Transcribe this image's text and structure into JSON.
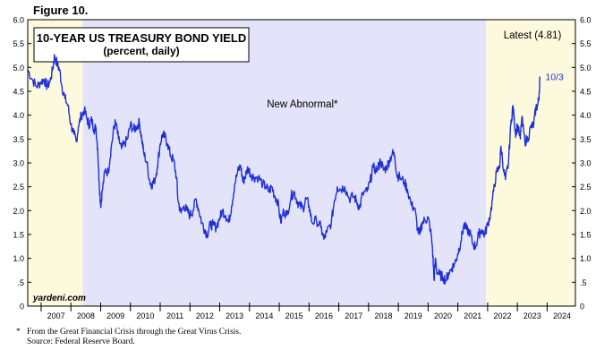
{
  "figure_label": "Figure 10.",
  "footnote": {
    "marker": "*",
    "text": "From the Great Financial Crisis through the Great Virus Crisis.",
    "source": "Source: Federal Reserve Board."
  },
  "colors": {
    "line": "#1f2fd6",
    "shade_yellow": "#fdf9dc",
    "shade_blue": "#e3e3fa",
    "border": "#000000",
    "label_text": "#000000"
  },
  "chart_data": {
    "type": "line",
    "title": "10-YEAR US TREASURY BOND YIELD",
    "subtitle": "(percent, daily)",
    "xlabel": "",
    "ylabel": "",
    "x_range": [
      2006.55,
      2024.95
    ],
    "ylim": [
      0,
      6
    ],
    "y_ticks": [
      {
        "value": 0,
        "label": "0"
      },
      {
        "value": 0.5,
        "label": ".5"
      },
      {
        "value": 1.0,
        "label": "1.0"
      },
      {
        "value": 1.5,
        "label": "1.5"
      },
      {
        "value": 2.0,
        "label": "2.0"
      },
      {
        "value": 2.5,
        "label": "2.5"
      },
      {
        "value": 3.0,
        "label": "3.0"
      },
      {
        "value": 3.5,
        "label": "3.5"
      },
      {
        "value": 4.0,
        "label": "4.0"
      },
      {
        "value": 4.5,
        "label": "4.5"
      },
      {
        "value": 5.0,
        "label": "5.0"
      },
      {
        "value": 5.5,
        "label": "5.5"
      },
      {
        "value": 6.0,
        "label": "6.0"
      }
    ],
    "x_ticks": [
      "2007",
      "2008",
      "2009",
      "2010",
      "2011",
      "2012",
      "2013",
      "2014",
      "2015",
      "2016",
      "2017",
      "2018",
      "2019",
      "2020",
      "2021",
      "2022",
      "2023",
      "2024"
    ],
    "shaded_regions": [
      {
        "start": 2006.55,
        "end": 2008.4,
        "color": "#fdf9dc"
      },
      {
        "start": 2008.4,
        "end": 2021.95,
        "color": "#e3e3fa",
        "label": "New Abnormal*"
      },
      {
        "start": 2021.95,
        "end": 2024.95,
        "color": "#fdf9dc"
      }
    ],
    "annotations": {
      "latest": "Latest (4.81)",
      "end_label": "10/3",
      "watermark": "yardeni.com"
    },
    "grid": false,
    "series": [
      {
        "values": [
          [
            2006.55,
            4.95
          ],
          [
            2006.7,
            4.75
          ],
          [
            2006.85,
            4.6
          ],
          [
            2007.0,
            4.7
          ],
          [
            2007.1,
            4.75
          ],
          [
            2007.2,
            4.6
          ],
          [
            2007.3,
            4.7
          ],
          [
            2007.4,
            5.0
          ],
          [
            2007.45,
            5.25
          ],
          [
            2007.55,
            5.05
          ],
          [
            2007.62,
            4.95
          ],
          [
            2007.7,
            4.6
          ],
          [
            2007.8,
            4.35
          ],
          [
            2007.9,
            4.2
          ],
          [
            2008.0,
            3.8
          ],
          [
            2008.1,
            3.6
          ],
          [
            2008.18,
            3.45
          ],
          [
            2008.25,
            3.75
          ],
          [
            2008.35,
            4.0
          ],
          [
            2008.45,
            4.1
          ],
          [
            2008.55,
            3.9
          ],
          [
            2008.62,
            3.8
          ],
          [
            2008.7,
            3.9
          ],
          [
            2008.78,
            3.7
          ],
          [
            2008.84,
            3.75
          ],
          [
            2008.9,
            3.3
          ],
          [
            2008.95,
            2.6
          ],
          [
            2009.0,
            2.1
          ],
          [
            2009.05,
            2.4
          ],
          [
            2009.15,
            2.85
          ],
          [
            2009.25,
            2.8
          ],
          [
            2009.35,
            3.3
          ],
          [
            2009.45,
            3.75
          ],
          [
            2009.5,
            3.85
          ],
          [
            2009.6,
            3.5
          ],
          [
            2009.7,
            3.3
          ],
          [
            2009.8,
            3.4
          ],
          [
            2009.9,
            3.5
          ],
          [
            2010.0,
            3.8
          ],
          [
            2010.1,
            3.7
          ],
          [
            2010.2,
            3.75
          ],
          [
            2010.3,
            3.85
          ],
          [
            2010.38,
            3.5
          ],
          [
            2010.45,
            3.2
          ],
          [
            2010.55,
            3.0
          ],
          [
            2010.65,
            2.6
          ],
          [
            2010.72,
            2.55
          ],
          [
            2010.8,
            2.6
          ],
          [
            2010.9,
            2.9
          ],
          [
            2011.0,
            3.4
          ],
          [
            2011.08,
            3.6
          ],
          [
            2011.15,
            3.55
          ],
          [
            2011.25,
            3.4
          ],
          [
            2011.35,
            3.15
          ],
          [
            2011.45,
            3.05
          ],
          [
            2011.55,
            2.7
          ],
          [
            2011.6,
            2.2
          ],
          [
            2011.7,
            1.95
          ],
          [
            2011.8,
            2.1
          ],
          [
            2011.9,
            2.0
          ],
          [
            2012.0,
            1.9
          ],
          [
            2012.1,
            2.0
          ],
          [
            2012.2,
            2.25
          ],
          [
            2012.3,
            2.0
          ],
          [
            2012.4,
            1.75
          ],
          [
            2012.5,
            1.6
          ],
          [
            2012.58,
            1.5
          ],
          [
            2012.68,
            1.7
          ],
          [
            2012.78,
            1.7
          ],
          [
            2012.88,
            1.65
          ],
          [
            2013.0,
            1.85
          ],
          [
            2013.1,
            2.0
          ],
          [
            2013.2,
            1.9
          ],
          [
            2013.3,
            1.75
          ],
          [
            2013.4,
            2.1
          ],
          [
            2013.5,
            2.55
          ],
          [
            2013.6,
            2.8
          ],
          [
            2013.7,
            2.95
          ],
          [
            2013.78,
            2.6
          ],
          [
            2013.85,
            2.7
          ],
          [
            2013.95,
            2.9
          ],
          [
            2014.05,
            2.75
          ],
          [
            2014.15,
            2.7
          ],
          [
            2014.3,
            2.7
          ],
          [
            2014.45,
            2.55
          ],
          [
            2014.55,
            2.5
          ],
          [
            2014.65,
            2.4
          ],
          [
            2014.75,
            2.5
          ],
          [
            2014.85,
            2.3
          ],
          [
            2014.95,
            2.2
          ],
          [
            2015.05,
            1.75
          ],
          [
            2015.15,
            2.0
          ],
          [
            2015.25,
            1.9
          ],
          [
            2015.4,
            2.3
          ],
          [
            2015.5,
            2.4
          ],
          [
            2015.6,
            2.2
          ],
          [
            2015.7,
            2.1
          ],
          [
            2015.8,
            2.05
          ],
          [
            2015.9,
            2.25
          ],
          [
            2016.0,
            2.1
          ],
          [
            2016.1,
            1.75
          ],
          [
            2016.25,
            1.8
          ],
          [
            2016.4,
            1.65
          ],
          [
            2016.5,
            1.4
          ],
          [
            2016.6,
            1.55
          ],
          [
            2016.75,
            1.75
          ],
          [
            2016.85,
            2.2
          ],
          [
            2016.95,
            2.5
          ],
          [
            2017.05,
            2.45
          ],
          [
            2017.2,
            2.5
          ],
          [
            2017.35,
            2.25
          ],
          [
            2017.5,
            2.3
          ],
          [
            2017.6,
            2.2
          ],
          [
            2017.7,
            2.05
          ],
          [
            2017.8,
            2.35
          ],
          [
            2017.95,
            2.4
          ],
          [
            2018.05,
            2.6
          ],
          [
            2018.15,
            2.9
          ],
          [
            2018.3,
            2.85
          ],
          [
            2018.4,
            3.05
          ],
          [
            2018.5,
            2.85
          ],
          [
            2018.6,
            2.9
          ],
          [
            2018.7,
            3.05
          ],
          [
            2018.8,
            3.2
          ],
          [
            2018.88,
            3.15
          ],
          [
            2018.95,
            2.75
          ],
          [
            2019.05,
            2.7
          ],
          [
            2019.2,
            2.6
          ],
          [
            2019.3,
            2.45
          ],
          [
            2019.45,
            2.1
          ],
          [
            2019.55,
            2.05
          ],
          [
            2019.65,
            1.6
          ],
          [
            2019.72,
            1.5
          ],
          [
            2019.8,
            1.75
          ],
          [
            2019.9,
            1.8
          ],
          [
            2020.0,
            1.85
          ],
          [
            2020.08,
            1.6
          ],
          [
            2020.15,
            1.2
          ],
          [
            2020.2,
            0.55
          ],
          [
            2020.25,
            1.0
          ],
          [
            2020.3,
            0.7
          ],
          [
            2020.4,
            0.65
          ],
          [
            2020.5,
            0.6
          ],
          [
            2020.6,
            0.55
          ],
          [
            2020.7,
            0.7
          ],
          [
            2020.8,
            0.8
          ],
          [
            2020.9,
            0.9
          ],
          [
            2021.0,
            1.1
          ],
          [
            2021.1,
            1.35
          ],
          [
            2021.2,
            1.7
          ],
          [
            2021.3,
            1.6
          ],
          [
            2021.4,
            1.55
          ],
          [
            2021.5,
            1.3
          ],
          [
            2021.6,
            1.25
          ],
          [
            2021.7,
            1.5
          ],
          [
            2021.8,
            1.6
          ],
          [
            2021.9,
            1.5
          ],
          [
            2022.0,
            1.7
          ],
          [
            2022.1,
            1.95
          ],
          [
            2022.2,
            2.4
          ],
          [
            2022.3,
            2.8
          ],
          [
            2022.4,
            2.9
          ],
          [
            2022.45,
            3.35
          ],
          [
            2022.55,
            2.8
          ],
          [
            2022.6,
            2.65
          ],
          [
            2022.7,
            3.0
          ],
          [
            2022.78,
            3.8
          ],
          [
            2022.85,
            4.2
          ],
          [
            2022.9,
            3.85
          ],
          [
            2022.95,
            3.6
          ],
          [
            2023.0,
            3.8
          ],
          [
            2023.1,
            3.5
          ],
          [
            2023.15,
            3.95
          ],
          [
            2023.25,
            3.45
          ],
          [
            2023.35,
            3.5
          ],
          [
            2023.45,
            3.75
          ],
          [
            2023.55,
            3.8
          ],
          [
            2023.62,
            4.15
          ],
          [
            2023.68,
            4.2
          ],
          [
            2023.72,
            4.35
          ],
          [
            2023.76,
            4.81
          ]
        ]
      }
    ]
  }
}
